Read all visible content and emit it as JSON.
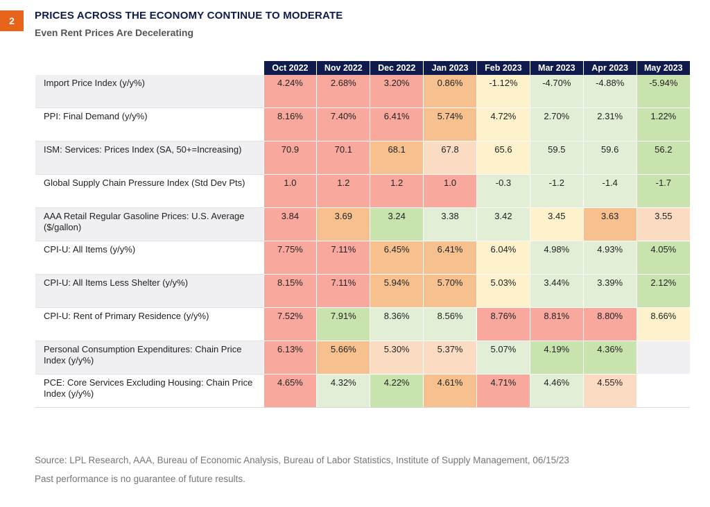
{
  "header": {
    "badge": "2",
    "title": "PRICES ACROSS THE ECONOMY CONTINUE TO MODERATE",
    "subtitle": "Even Rent Prices Are Decelerating"
  },
  "colors": {
    "red": "#f9a89e",
    "orange": "#f6c08f",
    "peach": "#fbdcc2",
    "yellow": "#fdf2cc",
    "light_green": "#e2efd6",
    "green": "#c8e3ad",
    "blank_odd": "#f0f0f2",
    "blank_even": "#ffffff",
    "header_bg": "#0f1b4c",
    "badge_bg": "#e8641b"
  },
  "chart_data": {
    "type": "table",
    "columns": [
      "Oct 2022",
      "Nov 2022",
      "Dec 2022",
      "Jan 2023",
      "Feb 2023",
      "Mar 2023",
      "Apr 2023",
      "May 2023"
    ],
    "rows": [
      {
        "label": "Import Price Index (y/y%)",
        "values": [
          "4.24%",
          "2.68%",
          "3.20%",
          "0.86%",
          "-1.12%",
          "-4.70%",
          "-4.88%",
          "-5.94%"
        ],
        "colors": [
          "red",
          "red",
          "red",
          "orange",
          "yellow",
          "light_green",
          "light_green",
          "green"
        ]
      },
      {
        "label": "PPI: Final Demand (y/y%)",
        "values": [
          "8.16%",
          "7.40%",
          "6.41%",
          "5.74%",
          "4.72%",
          "2.70%",
          "2.31%",
          "1.22%"
        ],
        "colors": [
          "red",
          "red",
          "red",
          "orange",
          "yellow",
          "light_green",
          "light_green",
          "green"
        ]
      },
      {
        "label": "ISM: Services: Prices Index (SA, 50+=Increasing)",
        "values": [
          "70.9",
          "70.1",
          "68.1",
          "67.8",
          "65.6",
          "59.5",
          "59.6",
          "56.2"
        ],
        "colors": [
          "red",
          "red",
          "orange",
          "peach",
          "yellow",
          "light_green",
          "light_green",
          "green"
        ]
      },
      {
        "label": "Global Supply Chain Pressure Index (Std Dev Pts)",
        "values": [
          "1.0",
          "1.2",
          "1.2",
          "1.0",
          "-0.3",
          "-1.2",
          "-1.4",
          "-1.7"
        ],
        "colors": [
          "red",
          "red",
          "red",
          "red",
          "light_green",
          "light_green",
          "light_green",
          "green"
        ]
      },
      {
        "label": "AAA Retail Regular Gasoline Prices: U.S. Average ($/gallon)",
        "values": [
          "3.84",
          "3.69",
          "3.24",
          "3.38",
          "3.42",
          "3.45",
          "3.63",
          "3.55"
        ],
        "colors": [
          "red",
          "orange",
          "green",
          "light_green",
          "light_green",
          "yellow",
          "orange",
          "peach"
        ]
      },
      {
        "label": "CPI-U: All Items (y/y%)",
        "values": [
          "7.75%",
          "7.11%",
          "6.45%",
          "6.41%",
          "6.04%",
          "4.98%",
          "4.93%",
          "4.05%"
        ],
        "colors": [
          "red",
          "red",
          "orange",
          "orange",
          "yellow",
          "light_green",
          "light_green",
          "green"
        ]
      },
      {
        "label": "CPI-U: All Items Less Shelter (y/y%)",
        "values": [
          "8.15%",
          "7.11%",
          "5.94%",
          "5.70%",
          "5.03%",
          "3.44%",
          "3.39%",
          "2.12%"
        ],
        "colors": [
          "red",
          "red",
          "orange",
          "orange",
          "yellow",
          "light_green",
          "light_green",
          "green"
        ]
      },
      {
        "label": "CPI-U: Rent of Primary Residence (y/y%)",
        "values": [
          "7.52%",
          "7.91%",
          "8.36%",
          "8.56%",
          "8.76%",
          "8.81%",
          "8.80%",
          "8.66%"
        ],
        "colors": [
          "red",
          "green",
          "light_green",
          "light_green",
          "red",
          "red",
          "red",
          "yellow"
        ]
      },
      {
        "label": "Personal Consumption Expenditures: Chain Price Index (y/y%)",
        "values": [
          "6.13%",
          "5.66%",
          "5.30%",
          "5.37%",
          "5.07%",
          "4.19%",
          "4.36%",
          ""
        ],
        "colors": [
          "red",
          "orange",
          "peach",
          "peach",
          "light_green",
          "green",
          "green",
          "blank_odd"
        ]
      },
      {
        "label": "PCE: Core Services Excluding Housing: Chain Price Index (y/y%)",
        "values": [
          "4.65%",
          "4.32%",
          "4.22%",
          "4.61%",
          "4.71%",
          "4.46%",
          "4.55%",
          ""
        ],
        "colors": [
          "red",
          "light_green",
          "green",
          "orange",
          "red",
          "light_green",
          "peach",
          "blank_even"
        ]
      }
    ]
  },
  "footer": {
    "source": "Source: LPL Research, AAA, Bureau of Economic Analysis, Bureau of Labor Statistics, Institute of Supply Management, 06/15/23",
    "disclaimer": "Past performance is no guarantee of future results."
  }
}
